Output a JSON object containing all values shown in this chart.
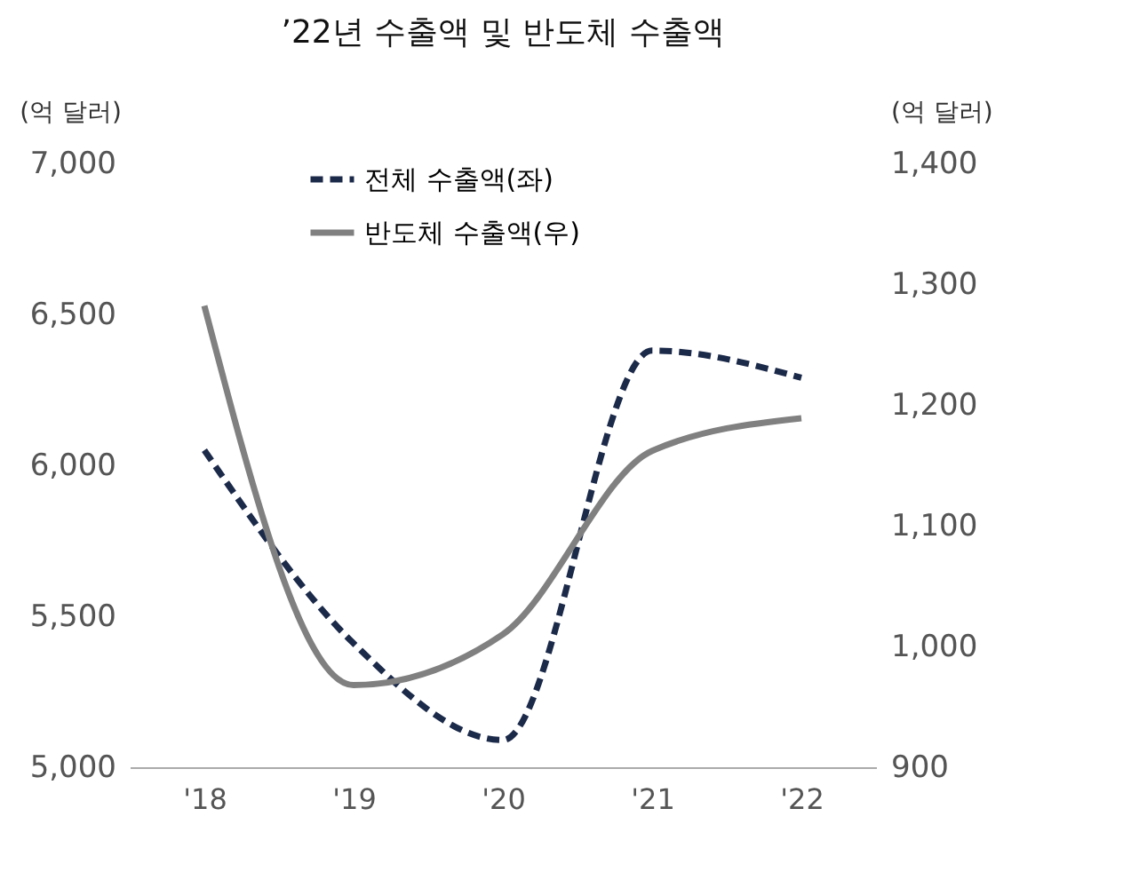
{
  "chart_data": {
    "type": "line",
    "title": "’22년 수출액 및 반도체 수출액",
    "ylabel": "(억 달러)",
    "y2label": "(억 달러)",
    "categories": [
      "'18",
      "'19",
      "'20",
      "'21",
      "'22"
    ],
    "series": [
      {
        "name": "전체 수출액(좌)",
        "color": "#1c2a4a",
        "line_style": "dashed",
        "values": [
          6050,
          5410,
          5090,
          6380,
          6290
        ]
      },
      {
        "name": "반도체 수출액(우)",
        "color": "#808080",
        "line_style": "solid",
        "axis": "y2",
        "values": [
          1282,
          968,
          1010,
          1162,
          1189
        ]
      }
    ],
    "ylim": [
      5000,
      7000
    ],
    "yticks": [
      {
        "value": 5000,
        "label": "5,000"
      },
      {
        "value": 5500,
        "label": "5,500"
      },
      {
        "value": 6000,
        "label": "6,000"
      },
      {
        "value": 6500,
        "label": "6,500"
      },
      {
        "value": 7000,
        "label": "7,000"
      }
    ],
    "y2lim": [
      900,
      1400
    ],
    "y2ticks": [
      {
        "value": 900,
        "label": "900"
      },
      {
        "value": 1000,
        "label": "1,000"
      },
      {
        "value": 1100,
        "label": "1,100"
      },
      {
        "value": 1200,
        "label": "1,200"
      },
      {
        "value": 1300,
        "label": "1,300"
      },
      {
        "value": 1400,
        "label": "1,400"
      }
    ],
    "grid": false,
    "legend": "top",
    "marker": "none"
  }
}
